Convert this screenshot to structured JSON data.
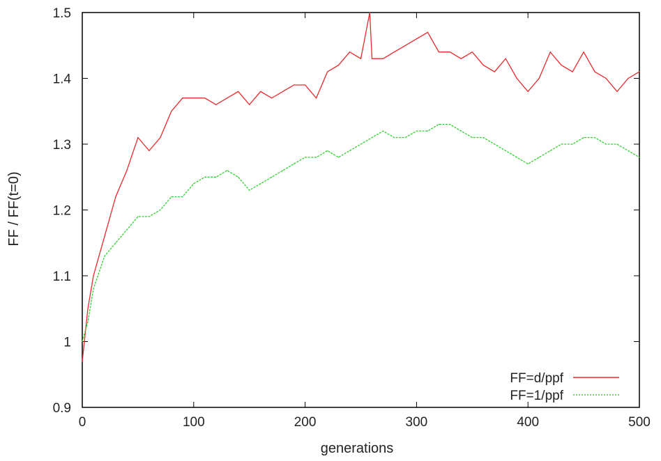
{
  "chart_data": {
    "type": "line",
    "title": "",
    "xlabel": "generations",
    "ylabel": "FF / FF(t=0)",
    "xlim": [
      0,
      500
    ],
    "ylim": [
      0.9,
      1.5
    ],
    "xticks": [
      "0",
      "100",
      "200",
      "300",
      "400",
      "500"
    ],
    "yticks": [
      "0.9",
      "1",
      "1.1",
      "1.2",
      "1.3",
      "1.4",
      "1.5"
    ],
    "grid": false,
    "legend_position": "bottom-right",
    "series": [
      {
        "name": "FF=d/ppf",
        "color": "#e8292b",
        "x": [
          0,
          5,
          10,
          20,
          30,
          40,
          50,
          60,
          70,
          80,
          90,
          100,
          110,
          120,
          130,
          140,
          150,
          160,
          170,
          180,
          190,
          200,
          210,
          220,
          230,
          240,
          250,
          258,
          260,
          270,
          280,
          290,
          300,
          310,
          320,
          330,
          340,
          350,
          360,
          370,
          380,
          390,
          400,
          410,
          420,
          430,
          440,
          450,
          460,
          470,
          480,
          490,
          500
        ],
        "y": [
          0.97,
          1.05,
          1.1,
          1.16,
          1.22,
          1.26,
          1.31,
          1.29,
          1.31,
          1.35,
          1.37,
          1.37,
          1.37,
          1.36,
          1.37,
          1.38,
          1.36,
          1.38,
          1.37,
          1.38,
          1.39,
          1.39,
          1.37,
          1.41,
          1.42,
          1.44,
          1.43,
          1.5,
          1.43,
          1.43,
          1.44,
          1.45,
          1.46,
          1.47,
          1.44,
          1.44,
          1.43,
          1.44,
          1.42,
          1.41,
          1.43,
          1.4,
          1.38,
          1.4,
          1.44,
          1.42,
          1.41,
          1.44,
          1.41,
          1.4,
          1.38,
          1.4,
          1.41
        ]
      },
      {
        "name": "FF=1/ppf",
        "color": "#2ecf2e",
        "x": [
          0,
          5,
          10,
          20,
          30,
          40,
          50,
          60,
          70,
          80,
          90,
          100,
          110,
          120,
          130,
          140,
          150,
          160,
          170,
          180,
          190,
          200,
          210,
          220,
          230,
          240,
          250,
          260,
          270,
          280,
          290,
          300,
          310,
          320,
          330,
          340,
          350,
          360,
          370,
          380,
          390,
          400,
          410,
          420,
          430,
          440,
          450,
          460,
          470,
          480,
          490,
          500
        ],
        "y": [
          1.0,
          1.03,
          1.08,
          1.13,
          1.15,
          1.17,
          1.19,
          1.19,
          1.2,
          1.22,
          1.22,
          1.24,
          1.25,
          1.25,
          1.26,
          1.25,
          1.23,
          1.24,
          1.25,
          1.26,
          1.27,
          1.28,
          1.28,
          1.29,
          1.28,
          1.29,
          1.3,
          1.31,
          1.32,
          1.31,
          1.31,
          1.32,
          1.32,
          1.33,
          1.33,
          1.32,
          1.31,
          1.31,
          1.3,
          1.29,
          1.28,
          1.27,
          1.28,
          1.29,
          1.3,
          1.3,
          1.31,
          1.31,
          1.3,
          1.3,
          1.29,
          1.28
        ]
      }
    ]
  }
}
